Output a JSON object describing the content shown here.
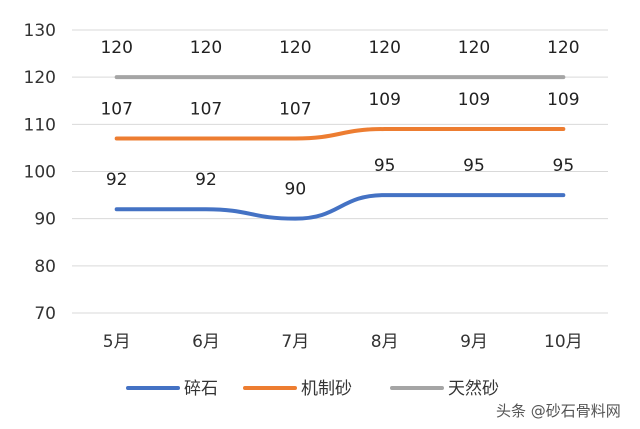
{
  "chart_data": {
    "type": "line",
    "categories": [
      "5月",
      "6月",
      "7月",
      "8月",
      "9月",
      "10月"
    ],
    "series": [
      {
        "name": "碎石",
        "values": [
          92,
          92,
          90,
          95,
          95,
          95
        ],
        "color": "#4472c4"
      },
      {
        "name": "机制砂",
        "values": [
          107,
          107,
          107,
          109,
          109,
          109
        ],
        "color": "#ed7d31"
      },
      {
        "name": "天然砂",
        "values": [
          120,
          120,
          120,
          120,
          120,
          120
        ],
        "color": "#a5a5a5"
      }
    ],
    "ylim": [
      70,
      130
    ],
    "yticks": [
      70,
      80,
      90,
      100,
      110,
      120,
      130
    ],
    "grid": true,
    "legend_position": "bottom",
    "smooth": true
  },
  "watermark": {
    "text": "头条 @砂石骨料网"
  }
}
